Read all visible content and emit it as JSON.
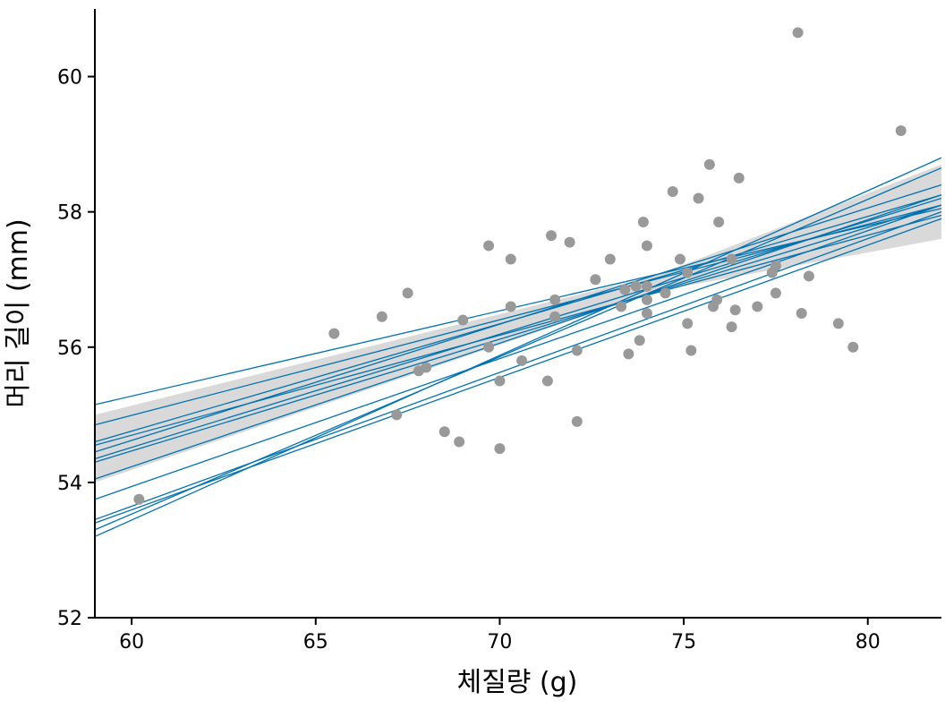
{
  "chart_data": {
    "type": "scatter",
    "title": "",
    "xlabel": "체질량 (g)",
    "ylabel": "머리 길이 (mm)",
    "xlim": [
      59,
      82
    ],
    "ylim": [
      52,
      61
    ],
    "xticks": [
      60,
      65,
      70,
      75,
      80
    ],
    "yticks": [
      52,
      54,
      56,
      58,
      60
    ],
    "grid": false,
    "legend": "none",
    "colors": {
      "points": "#999999",
      "lines": "#0072b2",
      "band": "#d9d9d9"
    },
    "points": [
      [
        60.2,
        53.75
      ],
      [
        65.5,
        56.2
      ],
      [
        66.8,
        56.45
      ],
      [
        67.5,
        56.8
      ],
      [
        67.2,
        55.0
      ],
      [
        67.8,
        55.65
      ],
      [
        68.0,
        55.7
      ],
      [
        68.5,
        54.75
      ],
      [
        68.9,
        54.6
      ],
      [
        69.0,
        56.4
      ],
      [
        69.7,
        57.5
      ],
      [
        69.7,
        56.0
      ],
      [
        70.0,
        55.5
      ],
      [
        70.0,
        54.5
      ],
      [
        70.3,
        57.3
      ],
      [
        70.3,
        56.6
      ],
      [
        70.6,
        55.8
      ],
      [
        71.3,
        55.5
      ],
      [
        71.4,
        57.65
      ],
      [
        71.5,
        56.7
      ],
      [
        71.5,
        56.45
      ],
      [
        71.9,
        57.55
      ],
      [
        72.1,
        55.95
      ],
      [
        72.1,
        54.9
      ],
      [
        72.6,
        57.0
      ],
      [
        73.0,
        57.3
      ],
      [
        73.3,
        56.6
      ],
      [
        73.4,
        56.85
      ],
      [
        73.5,
        55.9
      ],
      [
        73.7,
        56.9
      ],
      [
        73.8,
        56.1
      ],
      [
        73.9,
        57.85
      ],
      [
        74.0,
        57.5
      ],
      [
        74.0,
        56.9
      ],
      [
        74.0,
        56.7
      ],
      [
        74.0,
        56.5
      ],
      [
        74.5,
        56.8
      ],
      [
        74.7,
        58.3
      ],
      [
        74.9,
        57.3
      ],
      [
        75.1,
        57.1
      ],
      [
        75.1,
        56.35
      ],
      [
        75.2,
        55.95
      ],
      [
        75.4,
        58.2
      ],
      [
        75.7,
        58.7
      ],
      [
        75.8,
        56.6
      ],
      [
        75.9,
        56.7
      ],
      [
        75.95,
        57.85
      ],
      [
        76.3,
        57.3
      ],
      [
        76.3,
        56.3
      ],
      [
        76.4,
        56.55
      ],
      [
        76.5,
        58.5
      ],
      [
        77.0,
        56.6
      ],
      [
        77.4,
        57.1
      ],
      [
        77.5,
        57.2
      ],
      [
        77.5,
        56.8
      ],
      [
        78.1,
        60.65
      ],
      [
        78.2,
        56.5
      ],
      [
        78.4,
        57.05
      ],
      [
        79.2,
        56.35
      ],
      [
        79.6,
        56.0
      ],
      [
        80.9,
        59.2
      ]
    ],
    "band": {
      "x": [
        59,
        82
      ],
      "lower": [
        54.0,
        57.6
      ],
      "upper": [
        55.0,
        58.7
      ],
      "center": [
        74.3,
        56.95
      ]
    },
    "lines": [
      [
        55.15,
        58.05
      ],
      [
        54.85,
        58.1
      ],
      [
        54.6,
        58.25
      ],
      [
        54.55,
        57.95
      ],
      [
        54.45,
        58.4
      ],
      [
        54.35,
        58.2
      ],
      [
        54.3,
        58.1
      ],
      [
        54.05,
        58.25
      ],
      [
        53.75,
        58.1
      ],
      [
        53.45,
        58.0
      ],
      [
        53.4,
        57.9
      ],
      [
        53.3,
        58.65
      ],
      [
        53.2,
        58.8
      ]
    ]
  }
}
